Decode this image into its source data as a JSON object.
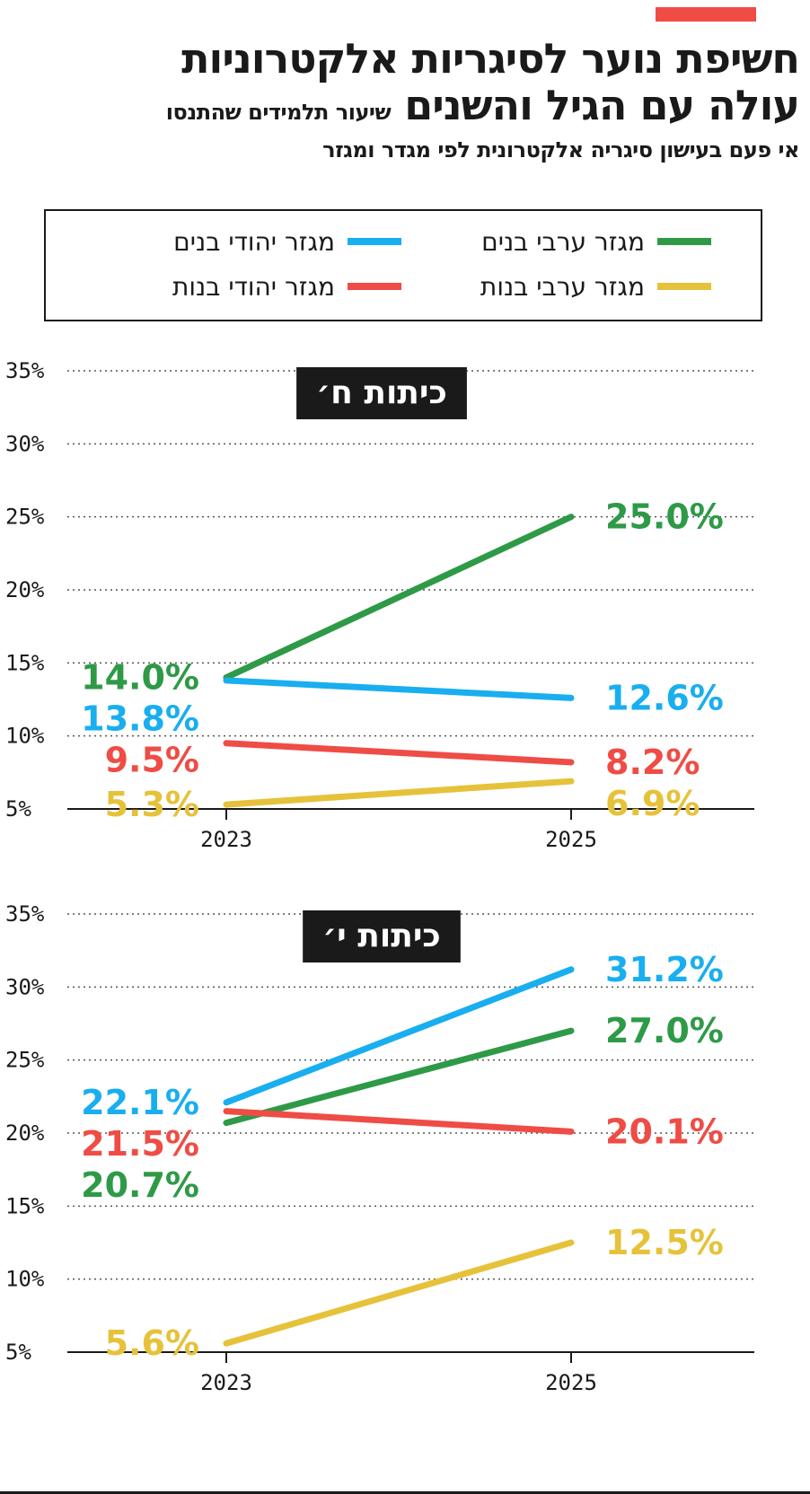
{
  "header": {
    "title_line1": "חשיפת נוער לסיגריות אלקטרוניות",
    "title_line2": "עולה עם הגיל והשנים",
    "subtitle_inline": "שיעור תלמידים שהתנסו",
    "subtitle_line": "אי פעם בעישון סיגריה אלקטרונית לפי מגדר ומגזר"
  },
  "legend": {
    "items": [
      {
        "label": "מגזר ערבי בנים",
        "color": "#2e9a47"
      },
      {
        "label": "מגזר יהודי בנים",
        "color": "#19aeef"
      },
      {
        "label": "מגזר ערבי בנות",
        "color": "#e6c23b"
      },
      {
        "label": "מגזר יהודי בנות",
        "color": "#ef4c45"
      }
    ]
  },
  "chart_data": [
    {
      "type": "line",
      "title": "כיתות ח׳",
      "x": [
        "2023",
        "2025"
      ],
      "ylim": [
        5,
        35
      ],
      "yticks": [
        "5%",
        "10%",
        "15%",
        "20%",
        "25%",
        "30%",
        "35%"
      ],
      "grid": "dotted horizontal",
      "series": [
        {
          "name": "מגזר ערבי בנים",
          "color": "#2e9a47",
          "values": [
            14.0,
            25.0
          ],
          "labels": [
            "14.0%",
            "25.0%"
          ]
        },
        {
          "name": "מגזר יהודי בנים",
          "color": "#19aeef",
          "values": [
            13.8,
            12.6
          ],
          "labels": [
            "13.8%",
            "12.6%"
          ]
        },
        {
          "name": "מגזר יהודי בנות",
          "color": "#ef4c45",
          "values": [
            9.5,
            8.2
          ],
          "labels": [
            "9.5%",
            "8.2%"
          ]
        },
        {
          "name": "מגזר ערבי בנות",
          "color": "#e6c23b",
          "values": [
            5.3,
            6.9
          ],
          "labels": [
            "5.3%",
            "6.9%"
          ]
        }
      ]
    },
    {
      "type": "line",
      "title": "כיתות י׳",
      "x": [
        "2023",
        "2025"
      ],
      "ylim": [
        5,
        35
      ],
      "yticks": [
        "5%",
        "10%",
        "15%",
        "20%",
        "25%",
        "30%",
        "35%"
      ],
      "grid": "dotted horizontal",
      "series": [
        {
          "name": "מגזר יהודי בנים",
          "color": "#19aeef",
          "values": [
            22.1,
            31.2
          ],
          "labels": [
            "22.1%",
            "31.2%"
          ]
        },
        {
          "name": "מגזר ערבי בנים",
          "color": "#2e9a47",
          "values": [
            20.7,
            27.0
          ],
          "labels": [
            "20.7%",
            "27.0%"
          ]
        },
        {
          "name": "מגזר יהודי בנות",
          "color": "#ef4c45",
          "values": [
            21.5,
            20.1
          ],
          "labels": [
            "21.5%",
            "20.1%"
          ]
        },
        {
          "name": "מגזר ערבי בנות",
          "color": "#e6c23b",
          "values": [
            5.6,
            12.5
          ],
          "labels": [
            "5.6%",
            "12.5%"
          ]
        }
      ]
    }
  ]
}
